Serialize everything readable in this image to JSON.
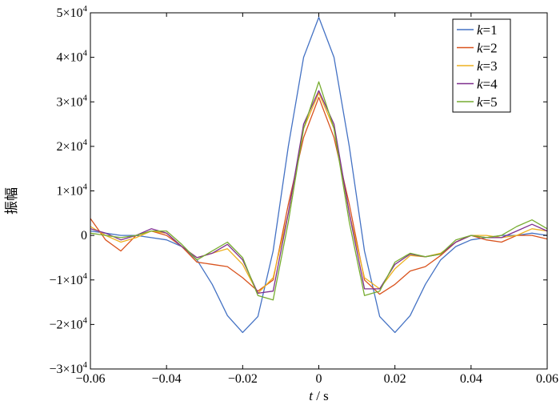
{
  "chart_data": {
    "type": "line",
    "title": "",
    "xlabel": {
      "var": "t",
      "sep": " / ",
      "unit": "s"
    },
    "ylabel": "振幅",
    "xlim": [
      -0.06,
      0.06
    ],
    "ylim": [
      -30000,
      50000
    ],
    "x_ticks": [
      {
        "value": -0.06,
        "label": "−0.06"
      },
      {
        "value": -0.04,
        "label": "−0.04"
      },
      {
        "value": -0.02,
        "label": "−0.02"
      },
      {
        "value": 0,
        "label": "0"
      },
      {
        "value": 0.02,
        "label": "0.02"
      },
      {
        "value": 0.04,
        "label": "0.04"
      },
      {
        "value": 0.06,
        "label": "0.06"
      }
    ],
    "y_ticks": [
      {
        "value": -30000,
        "mantissa": "−3×10",
        "exp": "4"
      },
      {
        "value": -20000,
        "mantissa": "−2×10",
        "exp": "4"
      },
      {
        "value": -10000,
        "mantissa": "−1×10",
        "exp": "4"
      },
      {
        "value": 0,
        "mantissa": "0",
        "exp": ""
      },
      {
        "value": 10000,
        "mantissa": "1×10",
        "exp": "4"
      },
      {
        "value": 20000,
        "mantissa": "2×10",
        "exp": "4"
      },
      {
        "value": 30000,
        "mantissa": "3×10",
        "exp": "4"
      },
      {
        "value": 40000,
        "mantissa": "4×10",
        "exp": "4"
      },
      {
        "value": 50000,
        "mantissa": "5×10",
        "exp": "4"
      }
    ],
    "grid": false,
    "legend_position": "top-right",
    "x": [
      -0.06,
      -0.056,
      -0.052,
      -0.048,
      -0.044,
      -0.04,
      -0.036,
      -0.032,
      -0.028,
      -0.024,
      -0.02,
      -0.016,
      -0.012,
      -0.008,
      -0.004,
      0,
      0.004,
      0.008,
      0.012,
      0.016,
      0.02,
      0.024,
      0.028,
      0.032,
      0.036,
      0.04,
      0.044,
      0.048,
      0.052,
      0.056,
      0.06
    ],
    "series": [
      {
        "name": "k=1",
        "name_var": "k",
        "name_rest": "=1",
        "color": "#4472C4",
        "values": [
          1000,
          500,
          0,
          0,
          -500,
          -1000,
          -2500,
          -5500,
          -11000,
          -18000,
          -21800,
          -18200,
          -3500,
          20000,
          40000,
          49000,
          40000,
          20000,
          -3500,
          -18200,
          -21800,
          -18000,
          -11000,
          -5500,
          -2500,
          -1000,
          -500,
          0,
          0,
          500,
          0
        ]
      },
      {
        "name": "k=2",
        "name_var": "k",
        "name_rest": "=2",
        "color": "#D9531E",
        "values": [
          3800,
          -1000,
          -3500,
          0,
          1000,
          0,
          -2500,
          -6000,
          -6500,
          -7000,
          -9500,
          -12500,
          -10000,
          7000,
          22000,
          31000,
          22000,
          7000,
          -10000,
          -13200,
          -11000,
          -8000,
          -7000,
          -4500,
          -1500,
          0,
          -1000,
          -1500,
          0,
          0,
          -800
        ]
      },
      {
        "name": "k=3",
        "name_var": "k",
        "name_rest": "=3",
        "color": "#EDB120",
        "values": [
          2000,
          0,
          -1500,
          -500,
          1000,
          500,
          -2500,
          -5000,
          -4000,
          -3000,
          -6500,
          -13000,
          -9500,
          5000,
          24000,
          32000,
          24000,
          5000,
          -9500,
          -12000,
          -7500,
          -4500,
          -4800,
          -4000,
          -1500,
          0,
          0,
          -500,
          0,
          1500,
          1000
        ]
      },
      {
        "name": "k=4",
        "name_var": "k",
        "name_rest": "=4",
        "color": "#7E2F8E",
        "values": [
          1500,
          500,
          -1000,
          0,
          1500,
          500,
          -2500,
          -5000,
          -4000,
          -2000,
          -5500,
          -13000,
          -12500,
          5000,
          25000,
          32500,
          25000,
          5000,
          -12000,
          -12000,
          -6500,
          -4200,
          -4800,
          -4200,
          -1500,
          0,
          -500,
          -500,
          1000,
          2500,
          1000
        ]
      },
      {
        "name": "k=5",
        "name_var": "k",
        "name_rest": "=5",
        "color": "#77AC30",
        "values": [
          500,
          0,
          -500,
          0,
          1000,
          1000,
          -2000,
          -5500,
          -3500,
          -1500,
          -5000,
          -13500,
          -14500,
          3000,
          24000,
          34500,
          24000,
          3000,
          -13500,
          -12500,
          -6000,
          -4000,
          -4800,
          -4200,
          -1000,
          0,
          -500,
          0,
          2000,
          3500,
          1500
        ]
      }
    ]
  }
}
